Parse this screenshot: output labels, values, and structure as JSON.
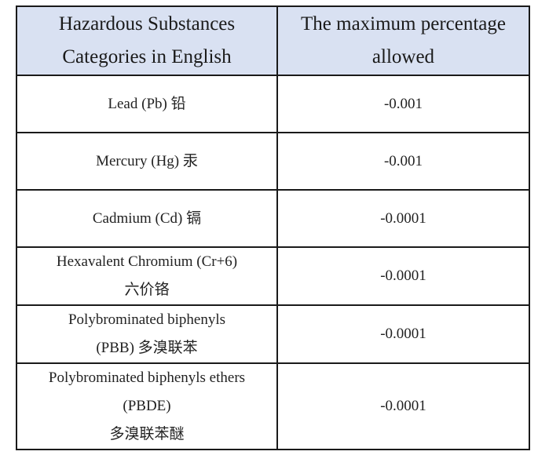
{
  "table": {
    "headers": [
      "Hazardous Substances Categories in English",
      "The maximum percentage allowed"
    ],
    "header_lines": [
      [
        "Hazardous Substances",
        "Categories in English"
      ],
      [
        "The maximum percentage",
        "allowed"
      ]
    ],
    "rows": [
      {
        "substance_lines": [
          "Lead (Pb) 铅"
        ],
        "max_percentage": "-0.001"
      },
      {
        "substance_lines": [
          "Mercury (Hg) 汞"
        ],
        "max_percentage": "-0.001"
      },
      {
        "substance_lines": [
          "Cadmium (Cd) 镉"
        ],
        "max_percentage": "-0.0001"
      },
      {
        "substance_lines": [
          "Hexavalent Chromium (Cr+6)",
          "六价铬"
        ],
        "max_percentage": "-0.0001"
      },
      {
        "substance_lines": [
          "Polybrominated biphenyls",
          "(PBB) 多溴联苯"
        ],
        "max_percentage": "-0.0001"
      },
      {
        "substance_lines": [
          "Polybrominated biphenyls ethers",
          "(PBDE)",
          "多溴联苯醚"
        ],
        "max_percentage": "-0.0001"
      }
    ],
    "header_bg": "#d9e1f2"
  }
}
